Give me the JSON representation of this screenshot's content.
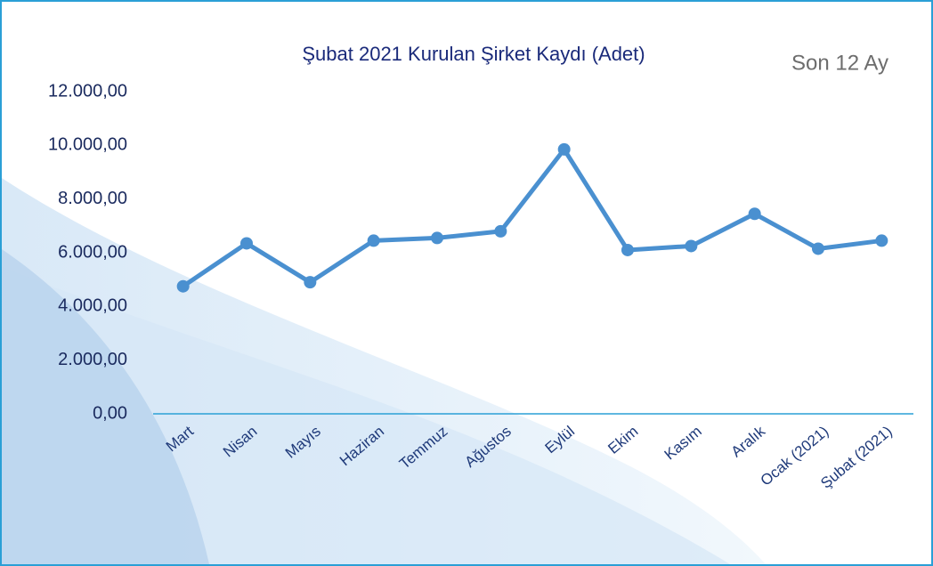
{
  "chart_data": {
    "type": "line",
    "title": "Şubat 2021 Kurulan Şirket Kaydı  (Adet)",
    "subtitle": "Son 12 Ay",
    "categories": [
      "Mart",
      "Nisan",
      "Mayıs",
      "Haziran",
      "Temmuz",
      "Ağustos",
      "Eylül",
      "Ekim",
      "Kasım",
      "Aralık",
      "Ocak (2021)",
      "Şubat (2021)"
    ],
    "values": [
      4750,
      6350,
      4900,
      6450,
      6550,
      6800,
      9850,
      6100,
      6250,
      7450,
      6150,
      6450
    ],
    "color": "#4a90d0",
    "ylim": [
      0,
      12000
    ],
    "yticks": [
      {
        "value": 0,
        "label": "0,00"
      },
      {
        "value": 2000,
        "label": "2.000,00"
      },
      {
        "value": 4000,
        "label": "4.000,00"
      },
      {
        "value": 6000,
        "label": "6.000,00"
      },
      {
        "value": 8000,
        "label": "8.000,00"
      },
      {
        "value": 10000,
        "label": "10.000,00"
      },
      {
        "value": 12000,
        "label": "12.000,00"
      }
    ],
    "grid": false
  }
}
